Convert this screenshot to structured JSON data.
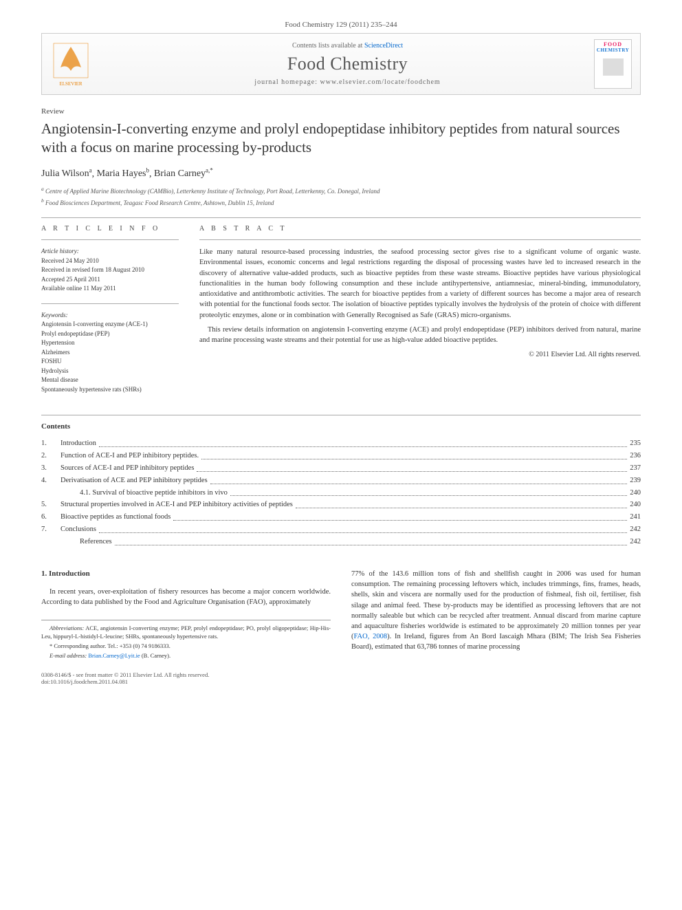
{
  "citation": "Food Chemistry 129 (2011) 235–244",
  "header": {
    "contents_prefix": "Contents lists available at ",
    "contents_link": "ScienceDirect",
    "journal_name": "Food Chemistry",
    "homepage_prefix": "journal homepage: ",
    "homepage_url": "www.elsevier.com/locate/foodchem",
    "cover_food": "FOOD",
    "cover_chem": "CHEMISTRY"
  },
  "article_type": "Review",
  "title": "Angiotensin-I-converting enzyme and prolyl endopeptidase inhibitory peptides from natural sources with a focus on marine processing by-products",
  "authors": [
    {
      "name": "Julia Wilson",
      "aff": "a"
    },
    {
      "name": "Maria Hayes",
      "aff": "b"
    },
    {
      "name": "Brian Carney",
      "aff": "a,*"
    }
  ],
  "affiliations": [
    {
      "sup": "a",
      "text": "Centre of Applied Marine Biotechnology (CAMBio), Letterkenny Institute of Technology, Port Road, Letterkenny, Co. Donegal, Ireland"
    },
    {
      "sup": "b",
      "text": "Food Biosciences Department, Teagasc Food Research Centre, Ashtown, Dublin 15, Ireland"
    }
  ],
  "article_info": {
    "heading": "A R T I C L E   I N F O",
    "history_label": "Article history:",
    "history": [
      "Received 24 May 2010",
      "Received in revised form 18 August 2010",
      "Accepted 25 April 2011",
      "Available online 11 May 2011"
    ],
    "keywords_label": "Keywords:",
    "keywords": [
      "Angiotensin I-converting enzyme (ACE-1)",
      "Prolyl endopeptidase (PEP)",
      "Hypertension",
      "Alzheimers",
      "FOSHU",
      "Hydrolysis",
      "Mental disease",
      "Spontaneously hypertensive rats (SHRs)"
    ]
  },
  "abstract": {
    "heading": "A B S T R A C T",
    "p1": "Like many natural resource-based processing industries, the seafood processing sector gives rise to a significant volume of organic waste. Environmental issues, economic concerns and legal restrictions regarding the disposal of processing wastes have led to increased research in the discovery of alternative value-added products, such as bioactive peptides from these waste streams. Bioactive peptides have various physiological functionalities in the human body following consumption and these include antihypertensive, antiamnesiac, mineral-binding, immunodulatory, antioxidative and antithrombotic activities. The search for bioactive peptides from a variety of different sources has become a major area of research with potential for the functional foods sector. The isolation of bioactive peptides typically involves the hydrolysis of the protein of choice with different proteolytic enzymes, alone or in combination with Generally Recognised as Safe (GRAS) micro-organisms.",
    "p2": "This review details information on angiotensin I-converting enzyme (ACE) and prolyl endopeptidase (PEP) inhibitors derived from natural, marine and marine processing waste streams and their potential for use as high-value added bioactive peptides.",
    "copyright": "© 2011 Elsevier Ltd. All rights reserved."
  },
  "contents": {
    "heading": "Contents",
    "items": [
      {
        "num": "1.",
        "title": "Introduction",
        "page": "235"
      },
      {
        "num": "2.",
        "title": "Function of ACE-I and PEP inhibitory peptides.",
        "page": "236"
      },
      {
        "num": "3.",
        "title": "Sources of ACE-I and PEP inhibitory peptides",
        "page": "237"
      },
      {
        "num": "4.",
        "title": "Derivatisation of ACE and PEP inhibitory peptides",
        "page": "239"
      },
      {
        "num": "",
        "title": "4.1.   Survival of bioactive peptide inhibitors in vivo",
        "page": "240",
        "indent": true
      },
      {
        "num": "5.",
        "title": "Structural properties involved in ACE-I and PEP inhibitory activities of peptides",
        "page": "240"
      },
      {
        "num": "6.",
        "title": "Bioactive peptides as functional foods",
        "page": "241"
      },
      {
        "num": "7.",
        "title": "Conclusions",
        "page": "242"
      },
      {
        "num": "",
        "title": "References",
        "page": "242",
        "indent": true
      }
    ]
  },
  "section1": {
    "heading": "1. Introduction",
    "col1": "In recent years, over-exploitation of fishery resources has become a major concern worldwide. According to data published by the Food and Agriculture Organisation (FAO), approximately",
    "col2a": "77% of the 143.6 million tons of fish and shellfish caught in 2006 was used for human consumption. The remaining processing leftovers which, includes trimmings, fins, frames, heads, shells, skin and viscera are normally used for the production of fishmeal, fish oil, fertiliser, fish silage and animal feed. These by-products may be identified as processing leftovers that are not normally saleable but which can be recycled after treatment. Annual discard from marine capture and aquaculture fisheries worldwide is estimated to be approximately 20 million tonnes per year (",
    "col2ref": "FAO, 2008",
    "col2b": "). In Ireland, figures from An Bord Iascaigh Mhara (BIM; The Irish Sea Fisheries Board), estimated that 63,786 tonnes of marine processing"
  },
  "footnotes": {
    "abbrev_label": "Abbreviations:",
    "abbrev": " ACE, angiotensin I-converting enzyme; PEP, prolyl endopeptidase; PO, prolyl oligopeptidase; Hip-His-Leu, hippuryl-L-histidyl-L-leucine; SHRs, spontaneously hypertensive rats.",
    "corr": "* Corresponding author. Tel.: +353 (0) 74 9186333.",
    "email_label": "E-mail address:",
    "email": " Brian.Carney@Lyit.ie",
    "email_tail": " (B. Carney)."
  },
  "bottom": {
    "line1": "0308-8146/$ - see front matter © 2011 Elsevier Ltd. All rights reserved.",
    "line2": "doi:10.1016/j.foodchem.2011.04.081"
  }
}
